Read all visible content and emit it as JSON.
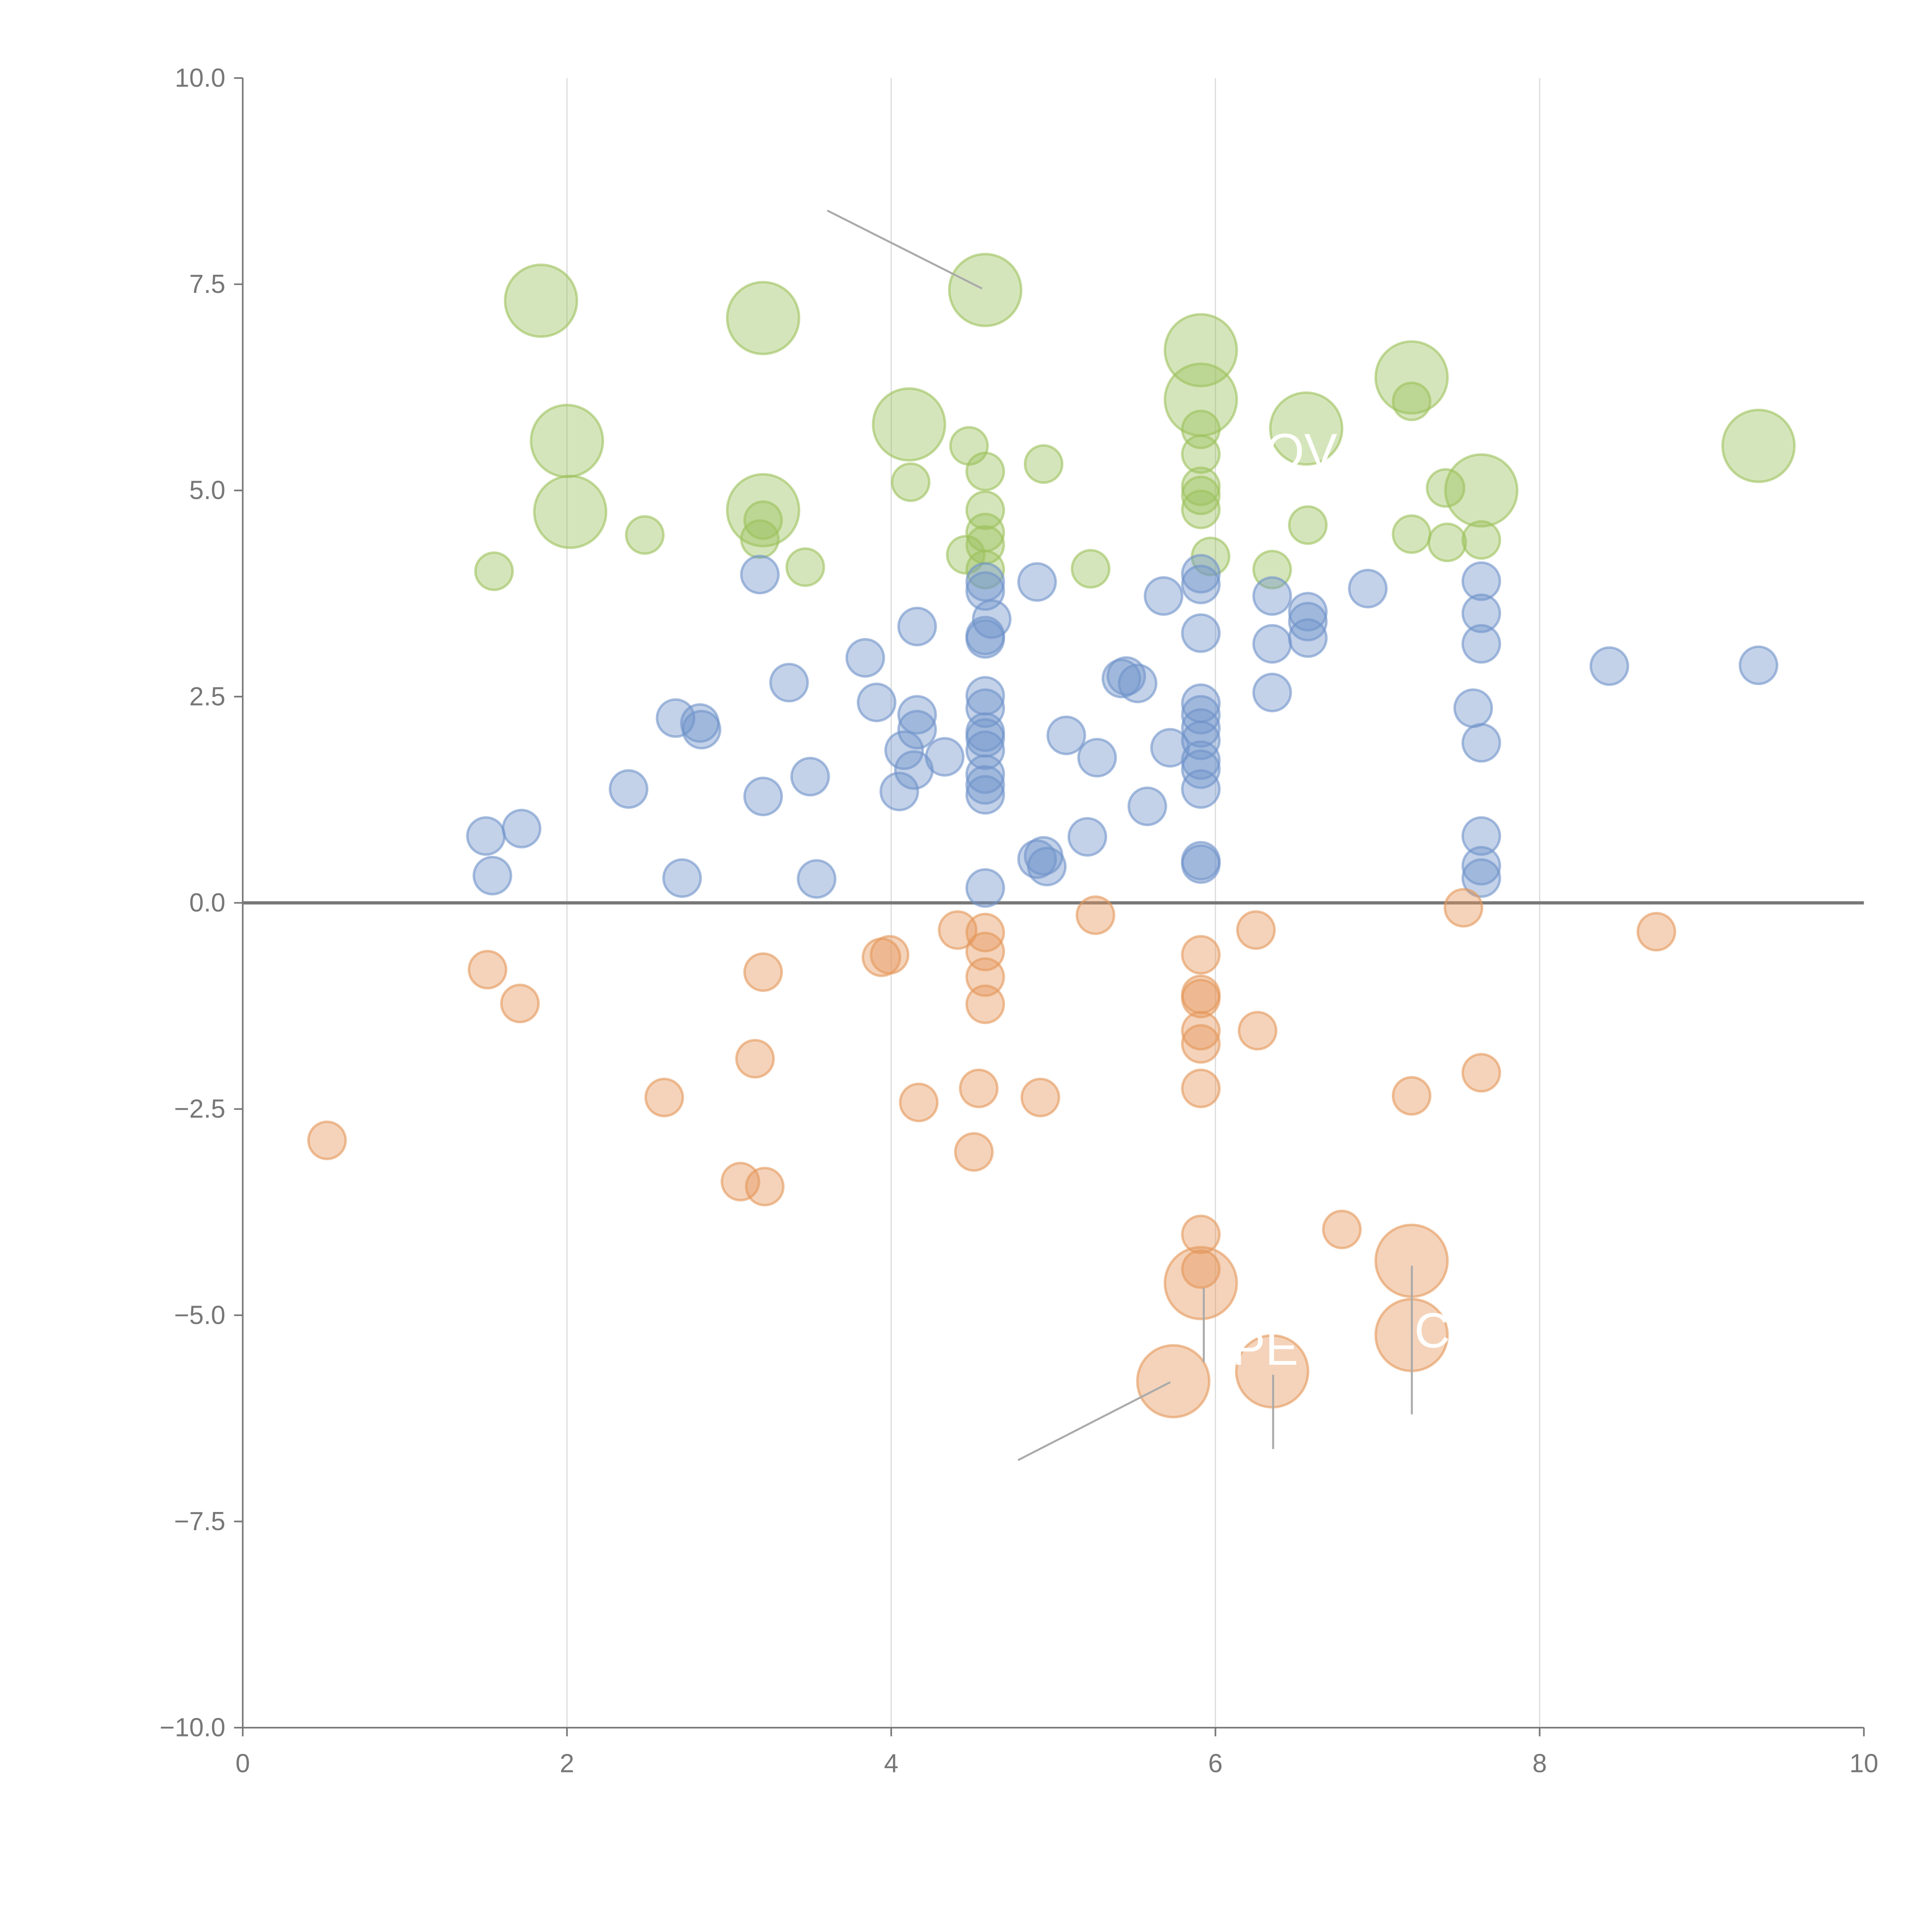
{
  "chart_data": {
    "type": "scatter",
    "title": "",
    "xlabel": "",
    "ylabel": "",
    "xlim": [
      0,
      10
    ],
    "ylim": [
      -10,
      10
    ],
    "grid": "vertical",
    "x_ticks": [
      "0",
      "2",
      "4",
      "6",
      "8",
      "10"
    ],
    "x_tick_values": [
      0,
      2,
      4,
      6,
      8,
      10
    ],
    "y_ticks": [
      "10.0",
      "7.5",
      "5.0",
      "2.5",
      "0.0",
      "−2.5",
      "−5.0",
      "−7.5",
      "−10.0"
    ],
    "y_tick_values": [
      10,
      7.5,
      5,
      2.5,
      0,
      -2.5,
      -5,
      -7.5,
      -10
    ],
    "point_format": "[x, y, size]  size: 1 = small bubble, 2 = large bubble",
    "series": [
      {
        "name": "green",
        "color": "#9cc25c",
        "points": [
          [
            1.84,
            7.3,
            2
          ],
          [
            3.21,
            7.09,
            2
          ],
          [
            4.58,
            7.43,
            2
          ],
          [
            5.91,
            6.7,
            2
          ],
          [
            5.91,
            6.1,
            2
          ],
          [
            7.21,
            6.37,
            2
          ],
          [
            6.56,
            5.75,
            2
          ],
          [
            7.64,
            5.0,
            2
          ],
          [
            9.35,
            5.54,
            2
          ],
          [
            2.0,
            5.6,
            2
          ],
          [
            2.02,
            4.74,
            2
          ],
          [
            4.11,
            5.8,
            2
          ],
          [
            3.21,
            4.76,
            2
          ],
          [
            4.48,
            5.54,
            1
          ],
          [
            4.94,
            5.32,
            1
          ],
          [
            4.12,
            5.1,
            1
          ],
          [
            4.58,
            5.23,
            1
          ],
          [
            4.58,
            4.76,
            1
          ],
          [
            4.58,
            4.49,
            1
          ],
          [
            4.58,
            4.34,
            1
          ],
          [
            4.46,
            4.22,
            1
          ],
          [
            4.58,
            4.04,
            1
          ],
          [
            2.48,
            4.46,
            1
          ],
          [
            1.55,
            4.02,
            1
          ],
          [
            3.21,
            4.64,
            1
          ],
          [
            3.19,
            4.41,
            1
          ],
          [
            3.47,
            4.07,
            1
          ],
          [
            5.23,
            4.05,
            1
          ],
          [
            5.91,
            5.74,
            1
          ],
          [
            5.91,
            5.44,
            1
          ],
          [
            5.91,
            5.05,
            1
          ],
          [
            5.91,
            4.94,
            1
          ],
          [
            5.91,
            4.77,
            1
          ],
          [
            5.97,
            4.2,
            1
          ],
          [
            6.35,
            4.04,
            1
          ],
          [
            6.57,
            4.58,
            1
          ],
          [
            7.21,
            6.08,
            1
          ],
          [
            7.21,
            4.47,
            1
          ],
          [
            7.42,
            5.03,
            1
          ],
          [
            7.43,
            4.37,
            1
          ],
          [
            7.64,
            4.4,
            1
          ]
        ]
      },
      {
        "name": "blue",
        "color": "#6f93ca",
        "points": [
          [
            1.5,
            0.81,
            1
          ],
          [
            1.72,
            0.9,
            1
          ],
          [
            1.54,
            0.33,
            1
          ],
          [
            2.38,
            1.38,
            1
          ],
          [
            2.67,
            2.24,
            1
          ],
          [
            2.82,
            2.18,
            1
          ],
          [
            2.83,
            2.1,
            1
          ],
          [
            2.71,
            0.3,
            1
          ],
          [
            3.19,
            3.98,
            1
          ],
          [
            3.21,
            1.29,
            1
          ],
          [
            3.37,
            2.67,
            1
          ],
          [
            3.5,
            1.53,
            1
          ],
          [
            3.54,
            0.29,
            1
          ],
          [
            3.84,
            2.97,
            1
          ],
          [
            3.91,
            2.43,
            1
          ],
          [
            4.05,
            1.35,
            1
          ],
          [
            4.08,
            1.85,
            1
          ],
          [
            4.16,
            3.35,
            1
          ],
          [
            4.16,
            2.28,
            1
          ],
          [
            4.16,
            2.1,
            1
          ],
          [
            4.14,
            1.61,
            1
          ],
          [
            4.33,
            1.77,
            1
          ],
          [
            4.58,
            3.89,
            1
          ],
          [
            4.58,
            3.78,
            1
          ],
          [
            4.58,
            3.24,
            1
          ],
          [
            4.58,
            3.2,
            1
          ],
          [
            4.62,
            3.44,
            1
          ],
          [
            4.58,
            2.51,
            1
          ],
          [
            4.58,
            2.36,
            1
          ],
          [
            4.58,
            2.07,
            1
          ],
          [
            4.58,
            2.0,
            1
          ],
          [
            4.58,
            1.85,
            1
          ],
          [
            4.58,
            1.56,
            1
          ],
          [
            4.58,
            1.43,
            1
          ],
          [
            4.58,
            1.31,
            1
          ],
          [
            4.58,
            0.18,
            1
          ],
          [
            4.9,
            3.89,
            1
          ],
          [
            5.08,
            2.03,
            1
          ],
          [
            5.27,
            1.76,
            1
          ],
          [
            5.21,
            0.8,
            1
          ],
          [
            4.9,
            0.53,
            1
          ],
          [
            4.94,
            0.57,
            1
          ],
          [
            4.96,
            0.44,
            1
          ],
          [
            5.42,
            2.72,
            1
          ],
          [
            5.45,
            2.75,
            1
          ],
          [
            5.52,
            2.66,
            1
          ],
          [
            5.58,
            1.17,
            1
          ],
          [
            5.68,
            3.72,
            1
          ],
          [
            5.72,
            1.88,
            1
          ],
          [
            5.91,
            3.99,
            1
          ],
          [
            5.91,
            3.86,
            1
          ],
          [
            5.91,
            3.27,
            1
          ],
          [
            5.91,
            2.42,
            1
          ],
          [
            5.91,
            2.28,
            1
          ],
          [
            5.91,
            2.12,
            1
          ],
          [
            5.91,
            1.97,
            1
          ],
          [
            5.91,
            1.73,
            1
          ],
          [
            5.91,
            1.62,
            1
          ],
          [
            5.91,
            1.38,
            1
          ],
          [
            5.91,
            0.51,
            1
          ],
          [
            5.91,
            0.47,
            1
          ],
          [
            6.35,
            3.72,
            1
          ],
          [
            6.35,
            3.14,
            1
          ],
          [
            6.35,
            2.55,
            1
          ],
          [
            6.57,
            3.53,
            1
          ],
          [
            6.57,
            3.41,
            1
          ],
          [
            6.57,
            3.21,
            1
          ],
          [
            6.94,
            3.81,
            1
          ],
          [
            7.59,
            2.36,
            1
          ],
          [
            7.64,
            3.9,
            1
          ],
          [
            7.64,
            3.51,
            1
          ],
          [
            7.64,
            3.14,
            1
          ],
          [
            7.64,
            1.94,
            1
          ],
          [
            7.64,
            0.81,
            1
          ],
          [
            7.64,
            0.45,
            1
          ],
          [
            7.64,
            0.3,
            1
          ],
          [
            8.43,
            2.87,
            1
          ],
          [
            9.35,
            2.88,
            1
          ]
        ]
      },
      {
        "name": "orange",
        "color": "#e4975a",
        "points": [
          [
            0.52,
            -2.88,
            1
          ],
          [
            1.51,
            -0.81,
            1
          ],
          [
            1.71,
            -1.22,
            1
          ],
          [
            2.6,
            -2.36,
            1
          ],
          [
            3.07,
            -3.38,
            1
          ],
          [
            3.22,
            -3.44,
            1
          ],
          [
            3.16,
            -1.89,
            1
          ],
          [
            3.21,
            -0.84,
            1
          ],
          [
            3.94,
            -0.66,
            1
          ],
          [
            3.99,
            -0.63,
            1
          ],
          [
            4.17,
            -2.42,
            1
          ],
          [
            4.41,
            -0.33,
            1
          ],
          [
            4.58,
            -0.36,
            1
          ],
          [
            4.58,
            -0.59,
            1
          ],
          [
            4.58,
            -0.9,
            1
          ],
          [
            4.58,
            -1.23,
            1
          ],
          [
            4.54,
            -2.25,
            1
          ],
          [
            4.51,
            -3.02,
            1
          ],
          [
            4.92,
            -2.36,
            1
          ],
          [
            5.26,
            -0.15,
            1
          ],
          [
            5.91,
            -0.63,
            1
          ],
          [
            5.91,
            -1.11,
            1
          ],
          [
            5.91,
            -1.16,
            1
          ],
          [
            5.91,
            -1.55,
            1
          ],
          [
            5.91,
            -1.71,
            1
          ],
          [
            5.91,
            -2.25,
            1
          ],
          [
            5.91,
            -4.02,
            1
          ],
          [
            5.91,
            -4.44,
            1
          ],
          [
            6.25,
            -0.33,
            1
          ],
          [
            6.26,
            -1.55,
            1
          ],
          [
            6.78,
            -3.96,
            1
          ],
          [
            7.21,
            -2.34,
            1
          ],
          [
            7.53,
            -0.06,
            1
          ],
          [
            7.64,
            -2.06,
            1
          ],
          [
            8.72,
            -0.35,
            1
          ],
          [
            5.91,
            -4.61,
            2
          ],
          [
            5.74,
            -5.8,
            2
          ],
          [
            6.35,
            -5.68,
            2
          ],
          [
            7.21,
            -4.34,
            2
          ],
          [
            7.21,
            -5.24,
            2
          ]
        ]
      }
    ],
    "annotations": [
      "OV",
      "PE",
      "C"
    ]
  }
}
